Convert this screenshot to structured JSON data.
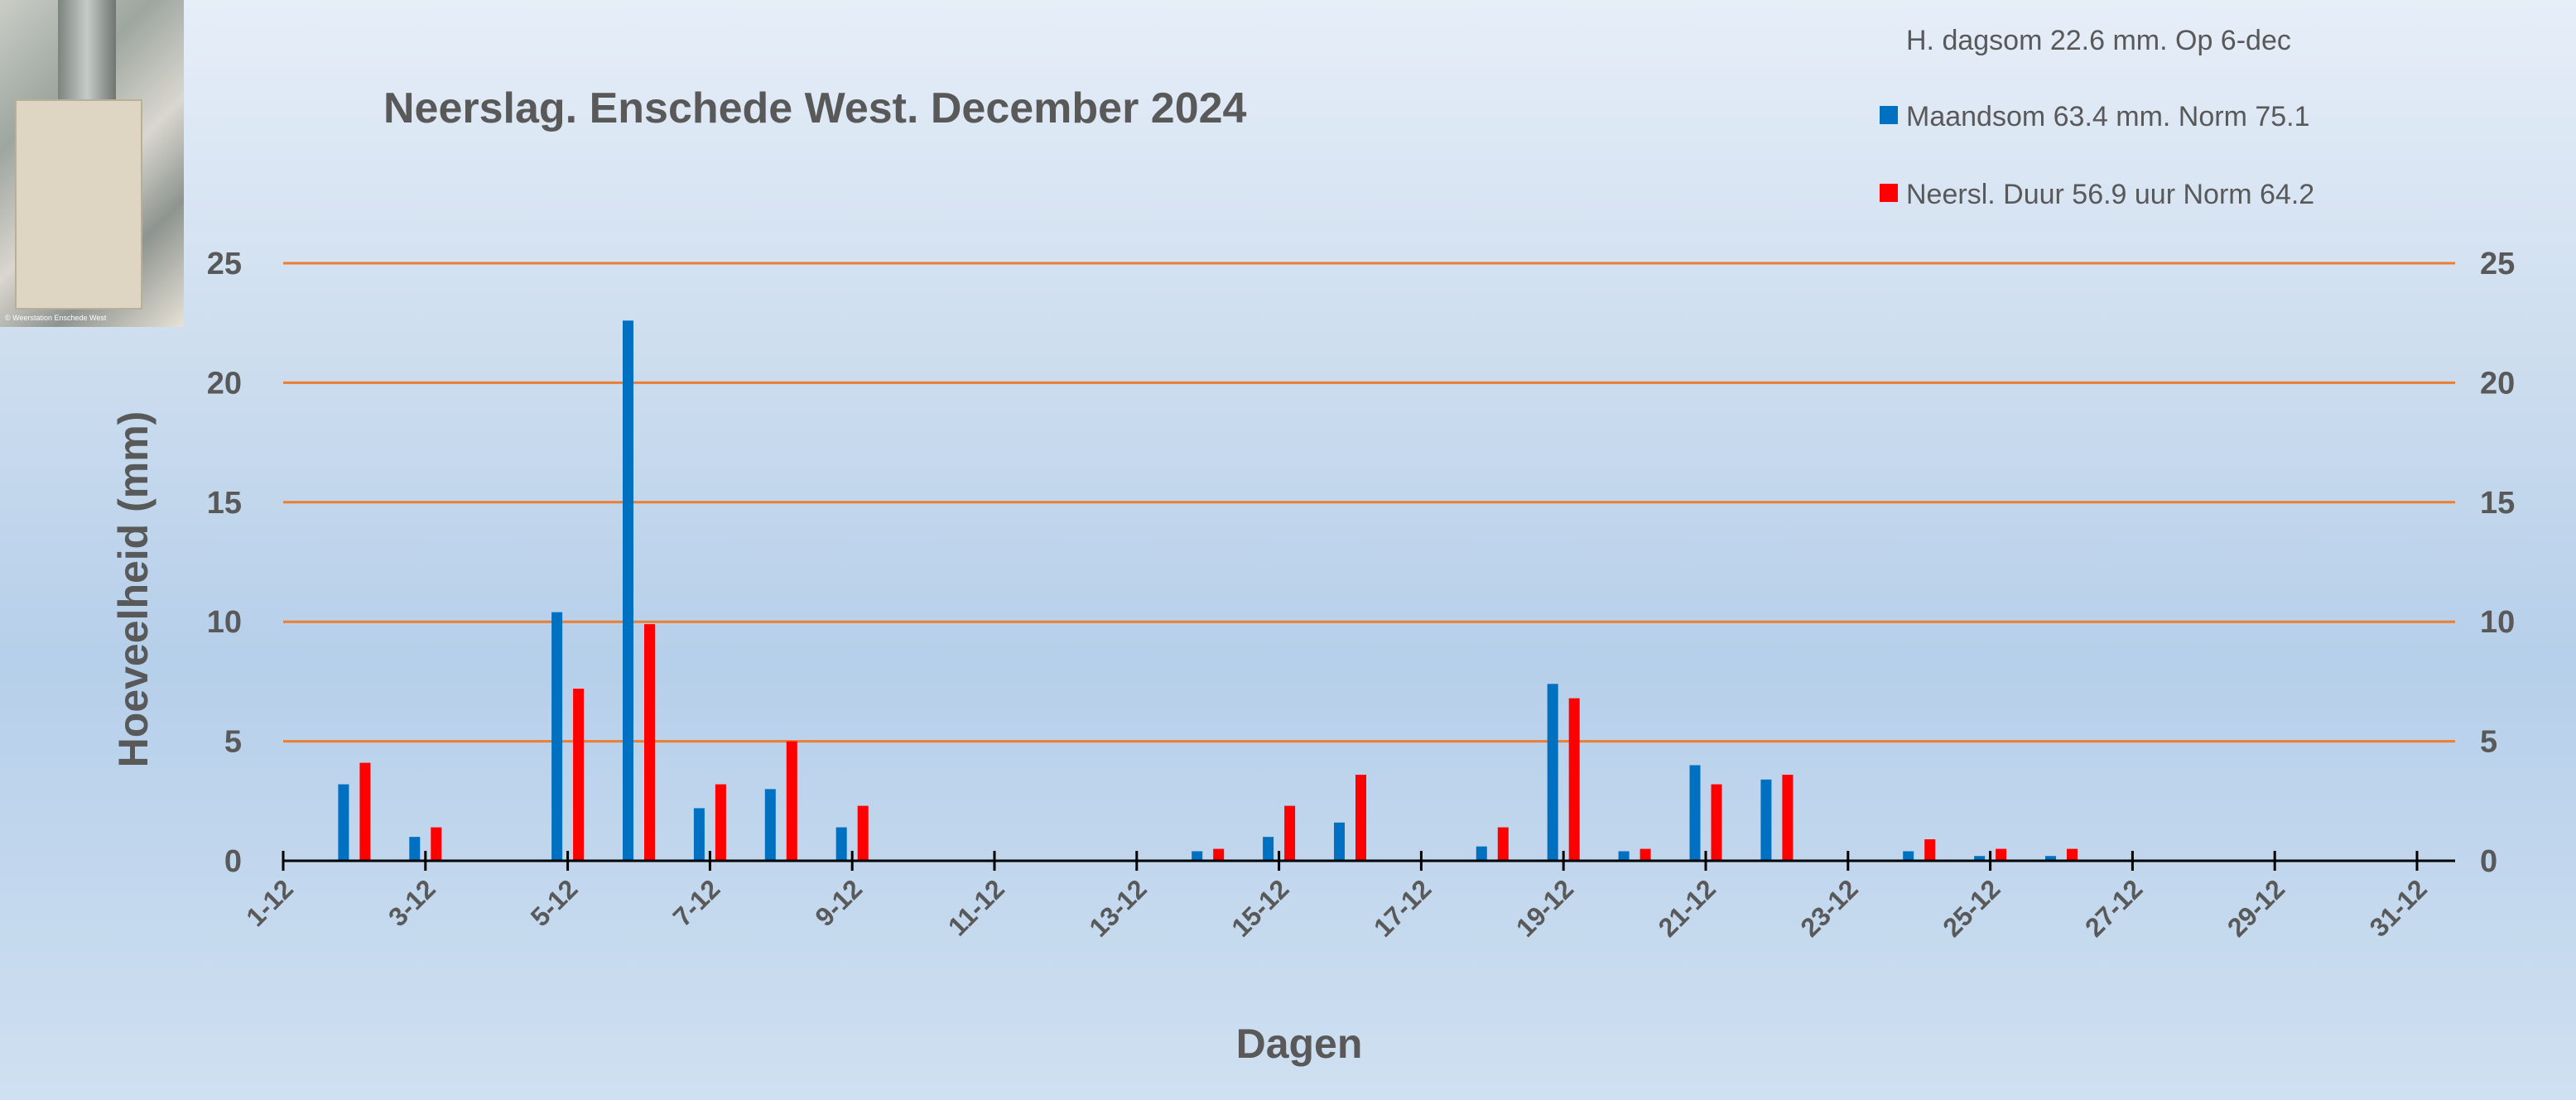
{
  "photo": {
    "caption": "© Weerstation Enschede West"
  },
  "chart_data": {
    "type": "bar",
    "title": "Neerslag. Enschede West. December 2024",
    "info": "H. dagsom 22.6 mm.  Op  6-dec",
    "xlabel": "Dagen",
    "ylabel": "Hoeveelheid (mm)",
    "ylim": [
      0,
      25
    ],
    "yticks": [
      0,
      5,
      10,
      15,
      20,
      25
    ],
    "secondary_y_axis": true,
    "grid": true,
    "legend_position": "top-right",
    "colors": {
      "series1": "#0070c0",
      "series2": "#ff0000",
      "grid": "#ed7d31",
      "axis": "#000000"
    },
    "days": [
      1,
      2,
      3,
      4,
      5,
      6,
      7,
      8,
      9,
      10,
      11,
      12,
      13,
      14,
      15,
      16,
      17,
      18,
      19,
      20,
      21,
      22,
      23,
      24,
      25,
      26,
      27,
      28,
      29,
      30,
      31
    ],
    "tick_labels": [
      "1-12",
      "3-12",
      "5-12",
      "7-12",
      "9-12",
      "11-12",
      "13-12",
      "15-12",
      "17-12",
      "19-12",
      "21-12",
      "23-12",
      "25-12",
      "27-12",
      "29-12",
      "31-12"
    ],
    "series": [
      {
        "name": "Maandsom 63.4 mm. Norm 75.1",
        "values": [
          0,
          3.2,
          1.0,
          0,
          10.4,
          22.6,
          2.2,
          3.0,
          1.4,
          0,
          0,
          0,
          0,
          0.4,
          1.0,
          1.6,
          0,
          0.6,
          7.4,
          0.4,
          4.0,
          3.4,
          0,
          0.4,
          0.2,
          0.2,
          0,
          0,
          0,
          0,
          0
        ]
      },
      {
        "name": "Neersl. Duur 56.9 uur Norm 64.2",
        "values": [
          0,
          4.1,
          1.4,
          0,
          7.2,
          9.9,
          3.2,
          5.0,
          2.3,
          0,
          0,
          0,
          0,
          0.5,
          2.3,
          3.6,
          0,
          1.4,
          6.8,
          0.5,
          3.2,
          3.6,
          0,
          0.9,
          0.5,
          0.5,
          0,
          0,
          0,
          0,
          0
        ]
      }
    ]
  }
}
